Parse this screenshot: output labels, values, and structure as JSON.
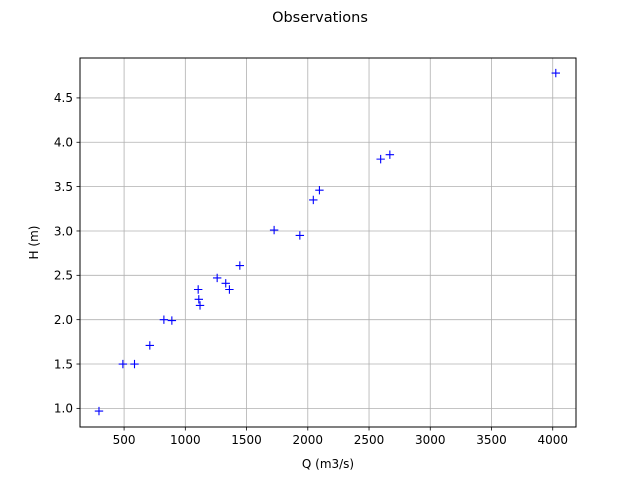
{
  "chart_data": {
    "type": "scatter",
    "title": "Observations",
    "xlabel": "Q (m3/s)",
    "ylabel": "H (m)",
    "xlim": [
      140,
      4190
    ],
    "ylim": [
      0.79,
      4.95
    ],
    "xticks": [
      500,
      1000,
      1500,
      2000,
      2500,
      3000,
      3500,
      4000
    ],
    "xtick_labels": [
      "500",
      "1000",
      "1500",
      "2000",
      "2500",
      "3000",
      "3500",
      "4000"
    ],
    "yticks": [
      1.0,
      1.5,
      2.0,
      2.5,
      3.0,
      3.5,
      4.0,
      4.5
    ],
    "ytick_labels": [
      "1.0",
      "1.5",
      "2.0",
      "2.5",
      "3.0",
      "3.5",
      "4.0",
      "4.5"
    ],
    "grid": true,
    "marker": "+",
    "marker_color": "#0000ff",
    "series": [
      {
        "x": [
          295,
          490,
          585,
          710,
          825,
          890,
          1105,
          1110,
          1120,
          1260,
          1330,
          1360,
          1445,
          1725,
          1935,
          2045,
          2095,
          2595,
          2670,
          4025
        ],
        "y": [
          0.97,
          1.5,
          1.5,
          1.71,
          2.0,
          1.99,
          2.34,
          2.23,
          2.16,
          2.47,
          2.41,
          2.34,
          2.61,
          3.01,
          2.95,
          3.35,
          3.46,
          3.81,
          3.86,
          4.78
        ]
      }
    ]
  }
}
